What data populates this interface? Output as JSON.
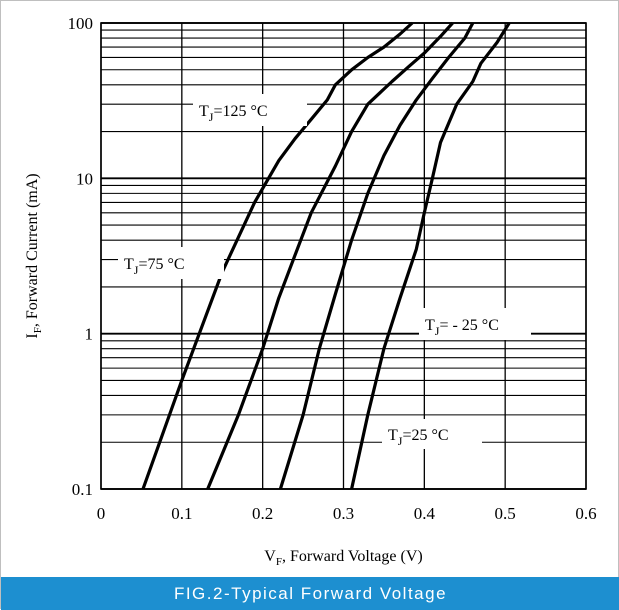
{
  "caption": "FIG.2-Typical Forward Voltage",
  "chart_data": {
    "type": "line",
    "title": "",
    "xlabel": {
      "main": "V",
      "sub": "F",
      "rest": ", Forward Voltage (V)"
    },
    "ylabel": {
      "main": "I",
      "sub": "F",
      "rest": ", Forward Current (mA)"
    },
    "x_ticks": [
      "0",
      "0.1",
      "0.2",
      "0.3",
      "0.4",
      "0.5",
      "0.6"
    ],
    "y_ticks": [
      "0.1",
      "1",
      "10",
      "100"
    ],
    "xlim": [
      0,
      0.6
    ],
    "ylim": [
      0.1,
      100
    ],
    "y_scale": "log",
    "grid": true,
    "series": [
      {
        "label": {
          "main": "T",
          "sub": "J",
          "rest": "=125 °C"
        },
        "x": [
          0.052,
          0.1,
          0.15,
          0.19,
          0.22,
          0.24,
          0.26,
          0.28,
          0.29,
          0.31,
          0.33,
          0.35,
          0.37,
          0.385
        ],
        "y": [
          0.1,
          0.5,
          2.5,
          7,
          13,
          18,
          24,
          32,
          40,
          50,
          60,
          70,
          85,
          100
        ]
      },
      {
        "label": {
          "main": "T",
          "sub": "J",
          "rest": "=75 °C"
        },
        "x": [
          0.132,
          0.17,
          0.2,
          0.22,
          0.24,
          0.26,
          0.29,
          0.31,
          0.33,
          0.36,
          0.38,
          0.4,
          0.42,
          0.435
        ],
        "y": [
          0.1,
          0.3,
          0.8,
          1.7,
          3.2,
          6,
          12,
          20,
          30,
          42,
          52,
          64,
          82,
          100
        ]
      },
      {
        "label": {
          "main": "T",
          "sub": "J",
          "rest": "= - 25 °C"
        },
        "x": [
          0.222,
          0.25,
          0.27,
          0.29,
          0.31,
          0.33,
          0.35,
          0.37,
          0.39,
          0.41,
          0.43,
          0.45,
          0.46
        ],
        "y": [
          0.1,
          0.3,
          0.8,
          1.8,
          4,
          8,
          14,
          22,
          32,
          44,
          60,
          80,
          100
        ]
      },
      {
        "label": {
          "main": "T",
          "sub": "J",
          "rest": "=25 °C"
        },
        "x": [
          0.31,
          0.33,
          0.35,
          0.37,
          0.39,
          0.4,
          0.41,
          0.42,
          0.44,
          0.46,
          0.47,
          0.49,
          0.505
        ],
        "y": [
          0.1,
          0.3,
          0.8,
          1.7,
          3.5,
          6,
          10,
          17,
          30,
          42,
          55,
          75,
          100
        ]
      }
    ]
  }
}
